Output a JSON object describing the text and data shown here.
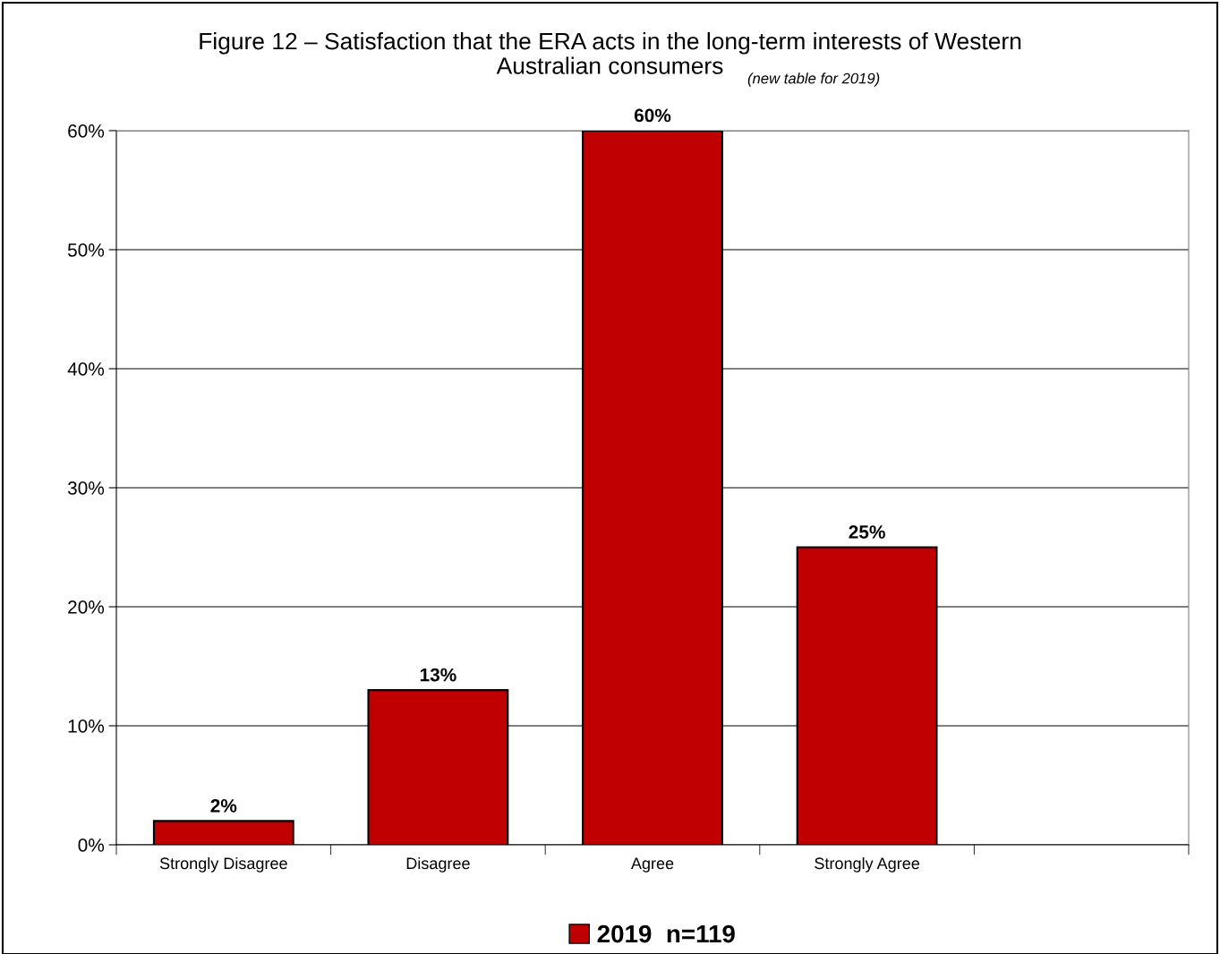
{
  "chart_data": {
    "type": "bar",
    "title": "Figure 12 – Satisfaction that the ERA acts in the long-term interests of Western\nAustralian consumers",
    "subtitle": "(new table for 2019)",
    "categories": [
      "Strongly Disagree",
      "Disagree",
      "Agree",
      "Strongly Agree",
      null
    ],
    "series": [
      {
        "name": "2019  n=119",
        "color": "#c00000",
        "values": [
          2,
          13,
          60,
          25,
          null
        ]
      }
    ],
    "ylim": [
      0,
      60
    ],
    "yticks": [
      {
        "value": 0,
        "label": "0%"
      },
      {
        "value": 10,
        "label": "10%"
      },
      {
        "value": 20,
        "label": "20%"
      },
      {
        "value": 30,
        "label": "30%"
      },
      {
        "value": 40,
        "label": "40%"
      },
      {
        "value": 50,
        "label": "50%"
      },
      {
        "value": 60,
        "label": "60%"
      }
    ],
    "grid": "y",
    "legend": "bottom",
    "value_labels": [
      "2%",
      "13%",
      "60%",
      "25%",
      null
    ]
  }
}
